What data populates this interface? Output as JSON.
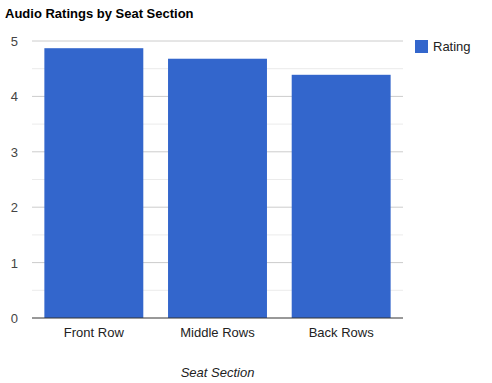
{
  "chart_data": {
    "type": "bar",
    "title": "Audio Ratings by Seat Section",
    "x_label": "Seat Section",
    "categories": [
      "Front Row",
      "Middle Rows",
      "Back Rows"
    ],
    "series": [
      {
        "name": "Rating",
        "color": "#3366cc",
        "values": [
          4.87,
          4.68,
          4.39
        ]
      }
    ],
    "ylim": [
      0,
      5
    ],
    "yticks": [
      0,
      1,
      2,
      3,
      4,
      5
    ],
    "grid": true,
    "legend": "right"
  }
}
